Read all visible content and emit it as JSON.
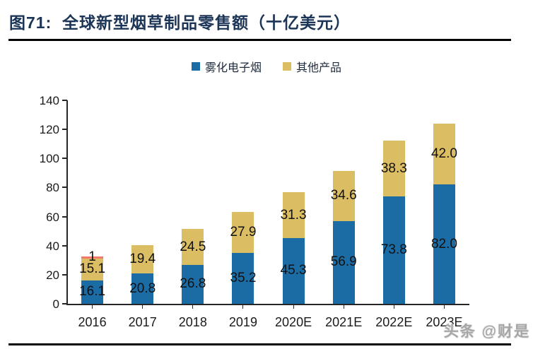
{
  "header": {
    "title": "图71:  全球新型烟草制品零售额（十亿美元）"
  },
  "watermark": {
    "text": "头条 @财是"
  },
  "colors": {
    "vape_blue": "#1B6BA4",
    "other_gold": "#DBBD64",
    "small_red_slice": "#F2796B",
    "title_navy": "#1C3557",
    "axis": "#262626"
  },
  "chart_data": {
    "type": "bar",
    "stacked": true,
    "title": "全球新型烟草制品零售额（十亿美元）",
    "categories": [
      "2016",
      "2017",
      "2018",
      "2019",
      "2020E",
      "2021E",
      "2022E",
      "2023E"
    ],
    "series": [
      {
        "name": "雾化电子烟",
        "color": "#1B6BA4",
        "in_legend": true,
        "values": [
          16.1,
          20.8,
          26.8,
          35.2,
          45.3,
          56.9,
          73.8,
          82.0
        ],
        "labels": [
          "16.1",
          "20.8",
          "26.8",
          "35.2",
          "45.3",
          "56.9",
          "73.8",
          "82.0"
        ]
      },
      {
        "name": "其他产品",
        "color": "#DBBD64",
        "in_legend": true,
        "values": [
          15.1,
          19.4,
          24.5,
          27.9,
          31.3,
          34.6,
          38.3,
          42.0
        ],
        "labels": [
          "15.1",
          "19.4",
          "24.5",
          "27.9",
          "31.3",
          "34.6",
          "38.3",
          "42.0"
        ]
      },
      {
        "name": "",
        "color": "#F2796B",
        "in_legend": false,
        "values": [
          1,
          0,
          0,
          0,
          0,
          0,
          0,
          0
        ],
        "labels": [
          "1",
          "",
          "",
          "",
          "",
          "",
          "",
          ""
        ]
      }
    ],
    "ylim": [
      0,
      140
    ],
    "yticks": [
      0,
      20,
      40,
      60,
      80,
      100,
      120,
      140
    ],
    "grid": false,
    "legend_position": "top-center"
  }
}
